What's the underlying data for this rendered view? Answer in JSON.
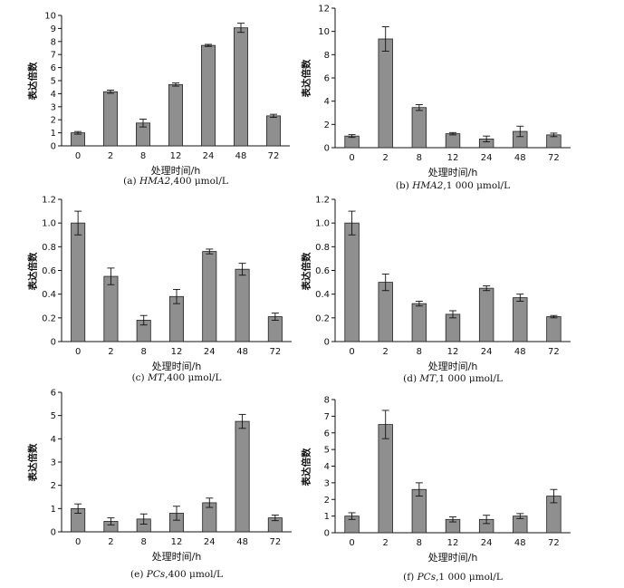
{
  "chart_data": [
    {
      "id": "a",
      "type": "bar",
      "categories": [
        "0",
        "2",
        "8",
        "12",
        "24",
        "48",
        "72"
      ],
      "values": [
        1.0,
        4.15,
        1.75,
        4.7,
        7.7,
        9.05,
        2.3
      ],
      "errors": [
        0.1,
        0.12,
        0.3,
        0.12,
        0.08,
        0.35,
        0.12
      ],
      "ylim": [
        0,
        10
      ],
      "yticks": [
        "0",
        "1",
        "2",
        "3",
        "4",
        "5",
        "6",
        "7",
        "8",
        "9",
        "10"
      ],
      "xlabel": "处理时间/h",
      "ylabel": "表达倍数",
      "caption_prefix": "(a) ",
      "caption_gene": "HMA2",
      "caption_rest": ",400 μmol/L"
    },
    {
      "id": "b",
      "type": "bar",
      "categories": [
        "0",
        "2",
        "8",
        "12",
        "24",
        "48",
        "72"
      ],
      "values": [
        1.0,
        9.35,
        3.45,
        1.2,
        0.75,
        1.4,
        1.1
      ],
      "errors": [
        0.12,
        1.05,
        0.25,
        0.1,
        0.25,
        0.45,
        0.15
      ],
      "ylim": [
        0,
        12
      ],
      "yticks": [
        "0",
        "2",
        "4",
        "6",
        "8",
        "10",
        "12"
      ],
      "xlabel": "处理时间/h",
      "ylabel": "表达倍数",
      "caption_prefix": "(b) ",
      "caption_gene": "HMA2",
      "caption_rest": ",1 000 μmol/L"
    },
    {
      "id": "c",
      "type": "bar",
      "categories": [
        "0",
        "2",
        "8",
        "12",
        "24",
        "48",
        "72"
      ],
      "values": [
        1.0,
        0.55,
        0.18,
        0.38,
        0.76,
        0.61,
        0.21
      ],
      "errors": [
        0.1,
        0.07,
        0.04,
        0.06,
        0.02,
        0.05,
        0.03
      ],
      "ylim": [
        0,
        1.2
      ],
      "yticks": [
        "0",
        "0.2",
        "0.4",
        "0.6",
        "0.8",
        "1.0",
        "1.2"
      ],
      "xlabel": "处理时间/h",
      "ylabel": "表达倍数",
      "caption_prefix": "(c) ",
      "caption_gene": "MT",
      "caption_rest": ",400 μmol/L"
    },
    {
      "id": "d",
      "type": "bar",
      "categories": [
        "0",
        "2",
        "8",
        "12",
        "24",
        "48",
        "72"
      ],
      "values": [
        1.0,
        0.5,
        0.32,
        0.23,
        0.45,
        0.37,
        0.21
      ],
      "errors": [
        0.1,
        0.07,
        0.02,
        0.03,
        0.02,
        0.03,
        0.01
      ],
      "ylim": [
        0,
        1.2
      ],
      "yticks": [
        "0",
        "0.2",
        "0.4",
        "0.6",
        "0.8",
        "1.0",
        "1.2"
      ],
      "xlabel": "处理时间/h",
      "ylabel": "表达倍数",
      "caption_prefix": "(d) ",
      "caption_gene": "MT",
      "caption_rest": ",1 000 μmol/L"
    },
    {
      "id": "e",
      "type": "bar",
      "categories": [
        "0",
        "2",
        "8",
        "12",
        "24",
        "48",
        "72"
      ],
      "values": [
        1.0,
        0.45,
        0.55,
        0.8,
        1.25,
        4.75,
        0.6
      ],
      "errors": [
        0.2,
        0.15,
        0.22,
        0.3,
        0.2,
        0.3,
        0.12
      ],
      "ylim": [
        0,
        6
      ],
      "yticks": [
        "0",
        "1",
        "2",
        "3",
        "4",
        "5",
        "6"
      ],
      "xlabel": "处理时间/h",
      "ylabel": "表达倍数",
      "caption_prefix": "(e) ",
      "caption_gene": "PCs",
      "caption_rest": ",400 μmol/L"
    },
    {
      "id": "f",
      "type": "bar",
      "categories": [
        "0",
        "2",
        "8",
        "12",
        "24",
        "48",
        "72"
      ],
      "values": [
        1.0,
        6.5,
        2.6,
        0.8,
        0.8,
        1.0,
        2.2
      ],
      "errors": [
        0.2,
        0.85,
        0.4,
        0.15,
        0.25,
        0.15,
        0.4
      ],
      "ylim": [
        0,
        8
      ],
      "yticks": [
        "0",
        "1",
        "2",
        "3",
        "4",
        "5",
        "6",
        "7",
        "8"
      ],
      "xlabel": "处理时间/h",
      "ylabel": "表达倍数",
      "caption_prefix": "(f) ",
      "caption_gene": "PCs",
      "caption_rest": ",1 000 μmol/L"
    }
  ]
}
